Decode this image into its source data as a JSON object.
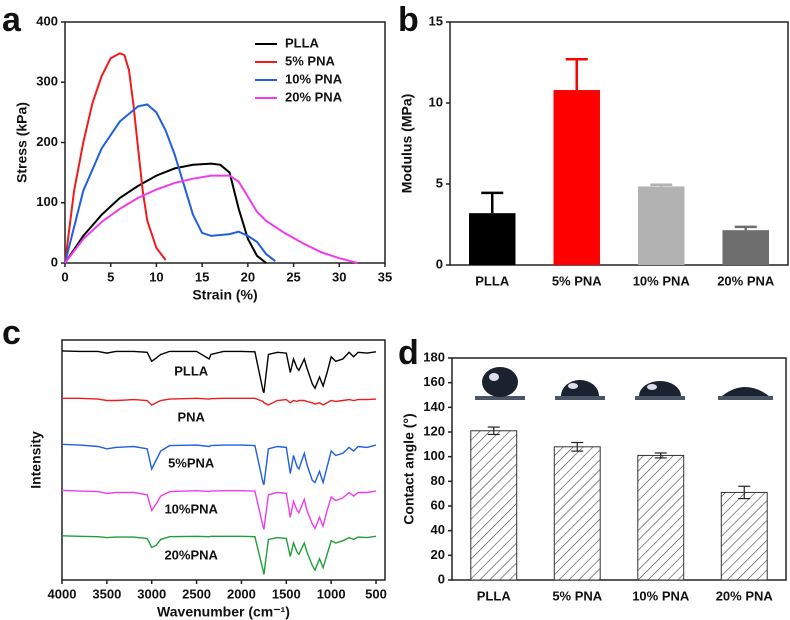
{
  "chart_data": [
    {
      "type": "line",
      "label": "a",
      "xlabel": "Strain (%)",
      "ylabel": "Stress (kPa)",
      "xlim": [
        0,
        35
      ],
      "xticks": [
        0,
        5,
        10,
        15,
        20,
        25,
        30,
        35
      ],
      "ylim": [
        0,
        400
      ],
      "yticks": [
        0,
        100,
        200,
        300,
        400
      ],
      "legend": "upper right",
      "series": [
        {
          "name": "PLLA",
          "color": "#000000",
          "x": [
            0,
            2,
            4,
            6,
            8,
            10,
            12,
            14,
            16,
            17,
            18,
            19,
            20,
            21,
            22
          ],
          "values": [
            0,
            45,
            80,
            108,
            128,
            145,
            157,
            163,
            165,
            163,
            150,
            90,
            40,
            12,
            0
          ]
        },
        {
          "name": "5% PNA",
          "color": "#ee1c1c",
          "x": [
            0,
            1,
            2,
            3,
            4,
            5,
            6,
            6.5,
            7,
            7.5,
            8,
            8.5,
            9,
            10,
            11
          ],
          "values": [
            0,
            120,
            200,
            265,
            310,
            340,
            348,
            345,
            320,
            260,
            190,
            120,
            70,
            25,
            5
          ]
        },
        {
          "name": "10% PNA",
          "color": "#1f5fe0",
          "x": [
            0,
            2,
            4,
            6,
            8,
            9,
            10,
            11,
            12,
            13,
            14,
            15,
            16,
            18,
            19,
            20,
            21,
            22,
            23
          ],
          "values": [
            0,
            120,
            190,
            235,
            260,
            263,
            250,
            220,
            180,
            130,
            80,
            50,
            45,
            48,
            52,
            45,
            35,
            15,
            3
          ]
        },
        {
          "name": "20% PNA",
          "color": "#ee3ced",
          "x": [
            0,
            2,
            4,
            6,
            8,
            10,
            12,
            14,
            16,
            18,
            19,
            20,
            21,
            22,
            24,
            26,
            28,
            30,
            32
          ],
          "values": [
            0,
            40,
            68,
            90,
            108,
            122,
            133,
            140,
            145,
            145,
            135,
            110,
            85,
            70,
            50,
            33,
            18,
            8,
            0
          ]
        }
      ]
    },
    {
      "type": "bar",
      "label": "b",
      "ylabel": "Modulus (MPa)",
      "ylim": [
        0,
        15
      ],
      "yticks": [
        0,
        5,
        10,
        15
      ],
      "errorbar": "upper",
      "categories": [
        "PLLA",
        "5% PNA",
        "10% PNA",
        "20% PNA"
      ],
      "values": [
        3.2,
        10.8,
        4.85,
        2.15
      ],
      "errors": [
        1.25,
        1.9,
        0.1,
        0.2
      ],
      "colors": [
        "#000000",
        "#ff0000",
        "#b2b2b2",
        "#6e6e6e"
      ]
    },
    {
      "type": "line",
      "label": "c",
      "xlabel": "Wavenumber (cm⁻¹)",
      "ylabel": "Intensity",
      "xlim": [
        4000,
        400
      ],
      "xticks": [
        4000,
        3500,
        3000,
        2500,
        2000,
        1500,
        1000,
        500
      ],
      "x": [
        4000,
        3800,
        3600,
        3500,
        3400,
        3200,
        3050,
        3000,
        2950,
        2900,
        2800,
        2500,
        2360,
        2340,
        2200,
        2000,
        1850,
        1760,
        1750,
        1700,
        1600,
        1500,
        1455,
        1420,
        1380,
        1360,
        1300,
        1270,
        1210,
        1180,
        1130,
        1090,
        1045,
        1000,
        950,
        870,
        800,
        750,
        700,
        600,
        500
      ],
      "series": [
        {
          "name": "PLLA",
          "color": "#000000",
          "values": [
            0.98,
            0.97,
            0.97,
            0.93,
            0.97,
            0.97,
            0.95,
            0.75,
            0.82,
            0.9,
            0.97,
            0.97,
            0.8,
            0.9,
            0.97,
            0.97,
            0.96,
            0.1,
            0.05,
            0.9,
            0.95,
            0.93,
            0.5,
            0.8,
            0.6,
            0.55,
            0.8,
            0.6,
            0.25,
            0.15,
            0.4,
            0.2,
            0.5,
            0.85,
            0.75,
            0.8,
            0.95,
            0.85,
            0.95,
            0.93,
            0.96
          ]
        },
        {
          "name": "PNA",
          "color": "#ee1c1c",
          "values": [
            0.95,
            0.95,
            0.93,
            0.9,
            0.9,
            0.92,
            0.9,
            0.8,
            0.85,
            0.9,
            0.93,
            0.95,
            0.93,
            0.94,
            0.95,
            0.95,
            0.95,
            0.88,
            0.85,
            0.8,
            0.9,
            0.92,
            0.85,
            0.9,
            0.88,
            0.9,
            0.9,
            0.88,
            0.85,
            0.82,
            0.85,
            0.8,
            0.85,
            0.9,
            0.88,
            0.9,
            0.92,
            0.9,
            0.92,
            0.92,
            0.93
          ]
        },
        {
          "name": "5%PNA",
          "color": "#1f5fe0",
          "values": [
            0.95,
            0.93,
            0.9,
            0.85,
            0.88,
            0.9,
            0.85,
            0.4,
            0.6,
            0.8,
            0.92,
            0.93,
            0.9,
            0.92,
            0.93,
            0.93,
            0.92,
            0.1,
            0.05,
            0.85,
            0.9,
            0.88,
            0.3,
            0.7,
            0.45,
            0.4,
            0.75,
            0.5,
            0.15,
            0.1,
            0.35,
            0.1,
            0.45,
            0.8,
            0.7,
            0.75,
            0.88,
            0.8,
            0.9,
            0.88,
            0.93
          ]
        },
        {
          "name": "10%PNA",
          "color": "#ee3ced",
          "values": [
            0.95,
            0.93,
            0.92,
            0.88,
            0.9,
            0.9,
            0.85,
            0.5,
            0.65,
            0.82,
            0.92,
            0.94,
            0.92,
            0.93,
            0.94,
            0.94,
            0.93,
            0.15,
            0.08,
            0.85,
            0.9,
            0.88,
            0.35,
            0.7,
            0.5,
            0.45,
            0.75,
            0.5,
            0.2,
            0.1,
            0.35,
            0.15,
            0.5,
            0.8,
            0.72,
            0.78,
            0.9,
            0.82,
            0.9,
            0.9,
            0.93
          ]
        },
        {
          "name": "20%PNA",
          "color": "#1f9e3a",
          "values": [
            0.96,
            0.95,
            0.94,
            0.92,
            0.93,
            0.93,
            0.9,
            0.7,
            0.75,
            0.88,
            0.94,
            0.95,
            0.94,
            0.95,
            0.95,
            0.95,
            0.94,
            0.2,
            0.1,
            0.88,
            0.92,
            0.9,
            0.5,
            0.8,
            0.6,
            0.55,
            0.8,
            0.6,
            0.3,
            0.2,
            0.45,
            0.25,
            0.55,
            0.85,
            0.8,
            0.85,
            0.92,
            0.88,
            0.93,
            0.92,
            0.95
          ]
        }
      ]
    },
    {
      "type": "bar",
      "label": "d",
      "ylabel": "Contact angle (°)",
      "ylim": [
        0,
        180
      ],
      "yticks": [
        0,
        20,
        40,
        60,
        80,
        100,
        120,
        140,
        160,
        180
      ],
      "errorbar": "both",
      "hatch": true,
      "categories": [
        "PLLA",
        "5% PNA",
        "10% PNA",
        "20% PNA"
      ],
      "values": [
        121,
        108,
        101,
        71
      ],
      "errors": [
        3,
        3.5,
        2,
        5
      ],
      "colors": [
        "#ffffff",
        "#ffffff",
        "#ffffff",
        "#ffffff"
      ]
    }
  ]
}
